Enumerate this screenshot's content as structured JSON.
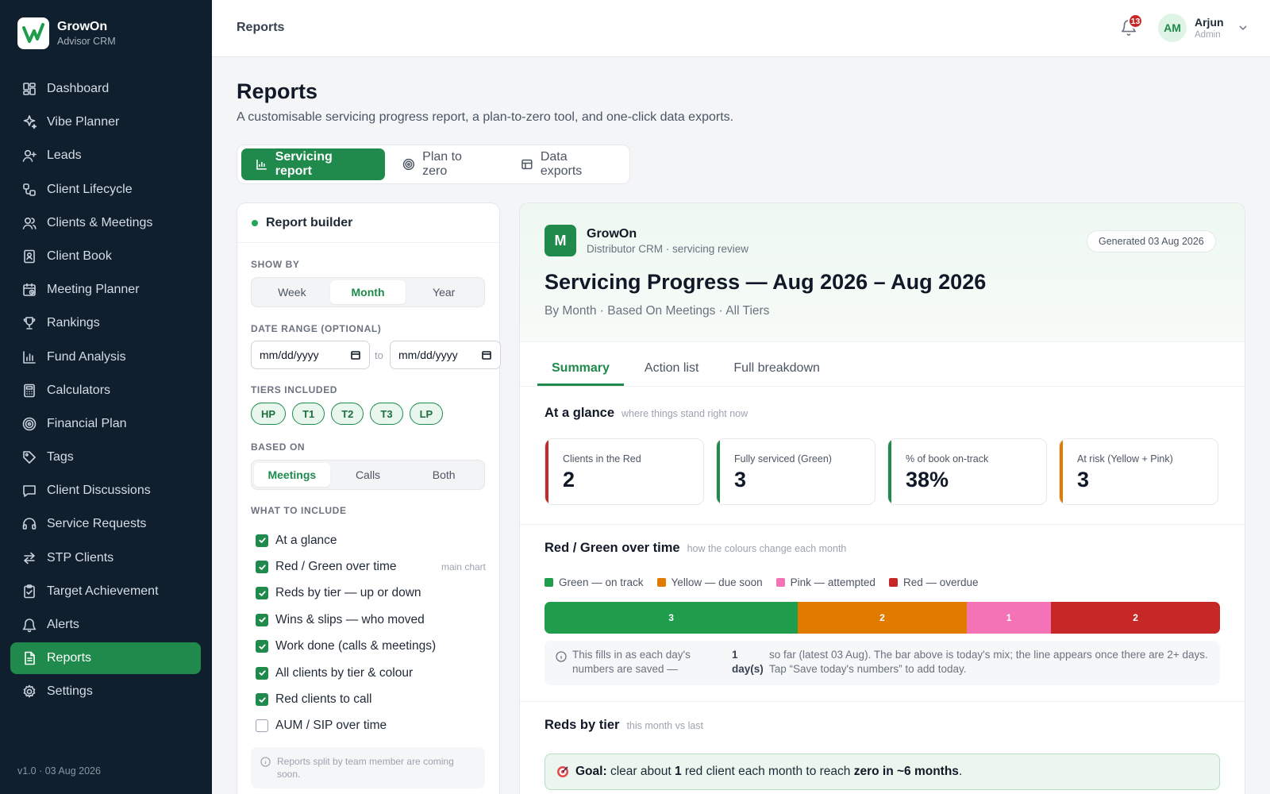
{
  "brand": {
    "name": "GrowOn",
    "subtitle": "Advisor CRM"
  },
  "sidebar": {
    "items": [
      {
        "label": "Dashboard",
        "icon": "dashboard-icon",
        "active": false
      },
      {
        "label": "Vibe Planner",
        "icon": "sparkle-icon",
        "active": false
      },
      {
        "label": "Leads",
        "icon": "user-plus-icon",
        "active": false
      },
      {
        "label": "Client Lifecycle",
        "icon": "lifecycle-icon",
        "active": false
      },
      {
        "label": "Clients & Meetings",
        "icon": "users-icon",
        "active": false
      },
      {
        "label": "Client Book",
        "icon": "book-icon",
        "active": false
      },
      {
        "label": "Meeting Planner",
        "icon": "calendar-icon",
        "active": false
      },
      {
        "label": "Rankings",
        "icon": "trophy-icon",
        "active": false
      },
      {
        "label": "Fund Analysis",
        "icon": "bar-chart-icon",
        "active": false
      },
      {
        "label": "Calculators",
        "icon": "calculator-icon",
        "active": false
      },
      {
        "label": "Financial Plan",
        "icon": "target-icon",
        "active": false
      },
      {
        "label": "Tags",
        "icon": "tag-icon",
        "active": false
      },
      {
        "label": "Client Discussions",
        "icon": "chat-icon",
        "active": false
      },
      {
        "label": "Service Requests",
        "icon": "headset-icon",
        "active": false
      },
      {
        "label": "STP Clients",
        "icon": "transfer-icon",
        "active": false
      },
      {
        "label": "Target Achievement",
        "icon": "clipboard-icon",
        "active": false
      },
      {
        "label": "Alerts",
        "icon": "bell-icon",
        "active": false
      },
      {
        "label": "Reports",
        "icon": "report-icon",
        "active": true
      },
      {
        "label": "Settings",
        "icon": "gear-icon",
        "active": false
      }
    ],
    "version": "v1.0 · 03 Aug 2026"
  },
  "topbar": {
    "title": "Reports",
    "notifications": "13",
    "user": {
      "initials": "AM",
      "name": "Arjun",
      "role": "Admin"
    }
  },
  "page": {
    "title": "Reports",
    "subtitle": "A customisable servicing progress report, a plan-to-zero tool, and one-click data exports.",
    "tabs": [
      {
        "label": "Servicing report",
        "active": true
      },
      {
        "label": "Plan to zero",
        "active": false
      },
      {
        "label": "Data exports",
        "active": false
      }
    ]
  },
  "builder": {
    "title": "Report builder",
    "show_by": {
      "label": "SHOW BY",
      "options": [
        "Week",
        "Month",
        "Year"
      ],
      "selected": "Month"
    },
    "date_range": {
      "label": "DATE RANGE (OPTIONAL)",
      "from_placeholder": "mm/dd/yyyy",
      "to_placeholder": "mm/dd/yyyy",
      "separator": "to"
    },
    "tiers": {
      "label": "TIERS INCLUDED",
      "items": [
        "HP",
        "T1",
        "T2",
        "T3",
        "LP"
      ]
    },
    "based_on": {
      "label": "BASED ON",
      "options": [
        "Meetings",
        "Calls",
        "Both"
      ],
      "selected": "Meetings"
    },
    "include": {
      "label": "WHAT TO INCLUDE",
      "items": [
        {
          "label": "At a glance",
          "checked": true,
          "hint": ""
        },
        {
          "label": "Red / Green over time",
          "checked": true,
          "hint": "main chart"
        },
        {
          "label": "Reds by tier — up or down",
          "checked": true,
          "hint": ""
        },
        {
          "label": "Wins & slips — who moved",
          "checked": true,
          "hint": ""
        },
        {
          "label": "Work done (calls & meetings)",
          "checked": true,
          "hint": ""
        },
        {
          "label": "All clients by tier & colour",
          "checked": true,
          "hint": ""
        },
        {
          "label": "Red clients to call",
          "checked": true,
          "hint": ""
        },
        {
          "label": "AUM / SIP over time",
          "checked": false,
          "hint": ""
        }
      ]
    },
    "note": "Reports split by team member are coming soon."
  },
  "report": {
    "org_initial": "M",
    "org_name": "GrowOn",
    "org_sub": "Distributor CRM · servicing review",
    "generated": "Generated 03 Aug 2026",
    "title": "Servicing Progress — Aug 2026 – Aug 2026",
    "meta": "By Month · Based On Meetings · All Tiers",
    "tabs": [
      {
        "label": "Summary",
        "active": true
      },
      {
        "label": "Action list",
        "active": false
      },
      {
        "label": "Full breakdown",
        "active": false
      }
    ],
    "glance": {
      "title": "At a glance",
      "hint": "where things stand right now",
      "stats": [
        {
          "label": "Clients in the Red",
          "value": "2",
          "color": "#c62828"
        },
        {
          "label": "Fully serviced (Green)",
          "value": "3",
          "color": "#1f8a4c"
        },
        {
          "label": "% of book on-track",
          "value": "38%",
          "color": "#1f8a4c"
        },
        {
          "label": "At risk (Yellow + Pink)",
          "value": "3",
          "color": "#e07b00"
        }
      ]
    },
    "over_time": {
      "title": "Red / Green over time",
      "hint": "how the colours change each month",
      "legend": [
        {
          "label": "Green — on track",
          "color": "#1f9d4c"
        },
        {
          "label": "Yellow — due soon",
          "color": "#e07b00"
        },
        {
          "label": "Pink — attempted",
          "color": "#f472b6"
        },
        {
          "label": "Red — overdue",
          "color": "#c62828"
        }
      ],
      "info_a": "This fills in as each day's numbers are saved —",
      "info_b": "1 day(s)",
      "info_c": "so far (latest 03 Aug). The bar above is today's mix; the line appears once there are 2+ days. Tap “Save today's numbers” to add today."
    },
    "reds_by_tier": {
      "title": "Reds by tier",
      "hint": "this month vs last",
      "goal_prefix": "Goal:",
      "goal_mid1": "clear about",
      "goal_num": "1",
      "goal_mid2": "red client each month to reach",
      "goal_end": "zero in ~6 months",
      "goal_dot": "."
    }
  },
  "chart_data": {
    "type": "bar",
    "stacked": true,
    "categories": [
      "today"
    ],
    "series": [
      {
        "name": "Green — on track",
        "values": [
          3
        ],
        "color": "#1f9d4c"
      },
      {
        "name": "Yellow — due soon",
        "values": [
          2
        ],
        "color": "#e07b00"
      },
      {
        "name": "Pink — attempted",
        "values": [
          1
        ],
        "color": "#f472b6"
      },
      {
        "name": "Red — overdue",
        "values": [
          2
        ],
        "color": "#c62828"
      }
    ],
    "title": "Red / Green over time"
  }
}
